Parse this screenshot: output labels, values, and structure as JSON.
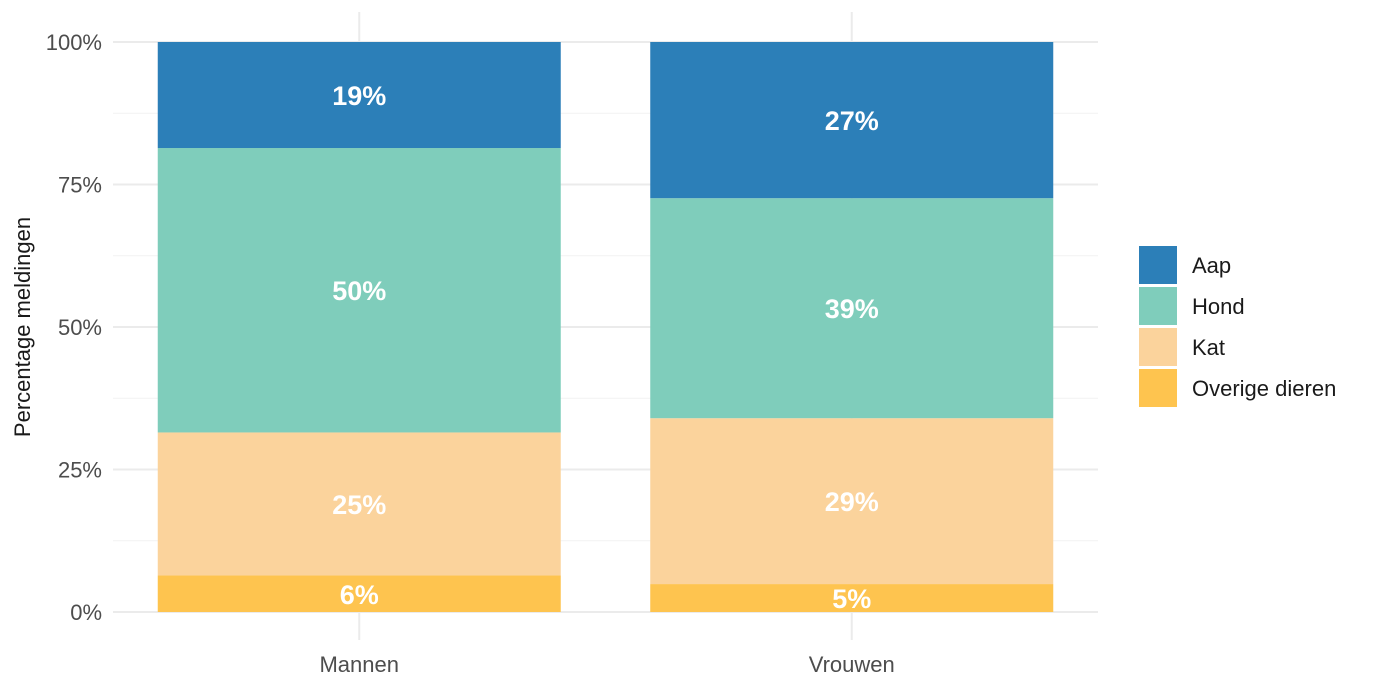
{
  "chart_data": {
    "type": "bar",
    "stacked": true,
    "normalized": true,
    "categories": [
      "Mannen",
      "Vrouwen"
    ],
    "ylabel": "Percentage meldingen",
    "xlabel": "",
    "ylim": [
      0,
      100
    ],
    "yticks": [
      "0%",
      "25%",
      "50%",
      "75%",
      "100%"
    ],
    "grid": true,
    "legend_position": "right",
    "series": [
      {
        "name": "Overige dieren",
        "color": "#FEC44F",
        "values": [
          6.4,
          4.9
        ],
        "labels": [
          "6%",
          "5%"
        ]
      },
      {
        "name": "Kat",
        "color": "#FBD39C",
        "values": [
          25.1,
          29.1
        ],
        "labels": [
          "25%",
          "29%"
        ]
      },
      {
        "name": "Hond",
        "color": "#7FCDBB",
        "values": [
          49.9,
          38.6
        ],
        "labels": [
          "50%",
          "39%"
        ]
      },
      {
        "name": "Aap",
        "color": "#2C7FB8",
        "values": [
          18.6,
          27.4
        ],
        "labels": [
          "19%",
          "27%"
        ]
      }
    ],
    "legend_order": [
      "Aap",
      "Hond",
      "Kat",
      "Overige dieren"
    ]
  }
}
